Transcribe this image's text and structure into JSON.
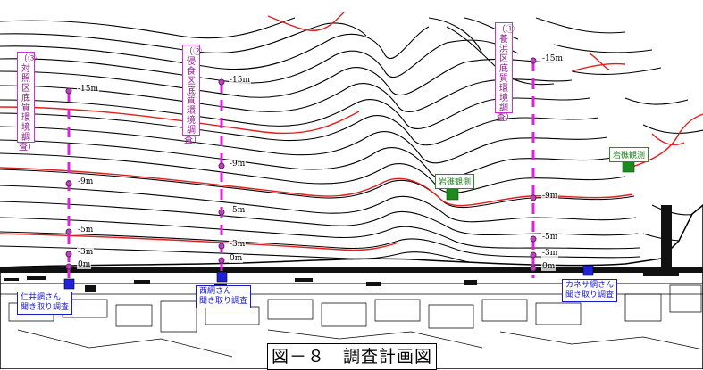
{
  "transects": [
    {
      "label": "（③対照区底質環境調査）",
      "depths": [
        "-15m",
        "-9m",
        "-5m",
        "-3m",
        "0m"
      ]
    },
    {
      "label": "（②侵食区底質環境調査）",
      "depths": [
        "-15m",
        "-9m",
        "-5m",
        "-3m",
        "0m"
      ]
    },
    {
      "label": "（①養浜区底質環境調査）",
      "depths": [
        "-15m",
        "-9m",
        "-5m",
        "-3m",
        "0m"
      ]
    }
  ],
  "reef_sites": [
    {
      "label": "岩礁観測"
    },
    {
      "label": "岩礁観測"
    }
  ],
  "interview_sites": [
    {
      "line1": "仁井網さん",
      "line2": "聞き取り調査"
    },
    {
      "line1": "西網さん",
      "line2": "聞き取り調査"
    },
    {
      "line1": "カネサ網さん",
      "line2": "聞き取り調査"
    }
  ],
  "caption": "図－８　調査計画図",
  "colors": {
    "contour": "#000000",
    "contour_highlight": "#e02020",
    "transect": "#dd22dd",
    "reef_marker": "#1e8a1e",
    "interview_marker": "#1a1acc"
  }
}
